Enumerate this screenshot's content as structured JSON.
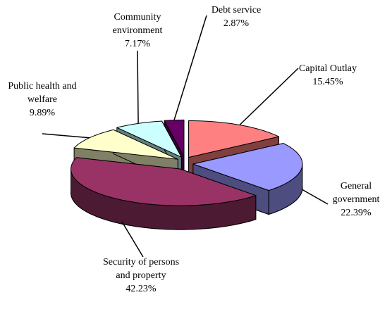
{
  "chart_data": {
    "type": "pie3d",
    "categories": [
      "Capital Outlay",
      "General government",
      "Security of persons and property",
      "Public health and welfare",
      "Community environment",
      "Debt service"
    ],
    "values": [
      15.45,
      22.39,
      42.23,
      9.89,
      7.17,
      2.87
    ],
    "value_labels": [
      "15.45%",
      "22.39%",
      "42.23%",
      "9.89%",
      "7.17%",
      "2.87%"
    ],
    "colors": [
      "#ff8080",
      "#9999ff",
      "#993366",
      "#ffffcc",
      "#ccffff",
      "#660066"
    ]
  }
}
